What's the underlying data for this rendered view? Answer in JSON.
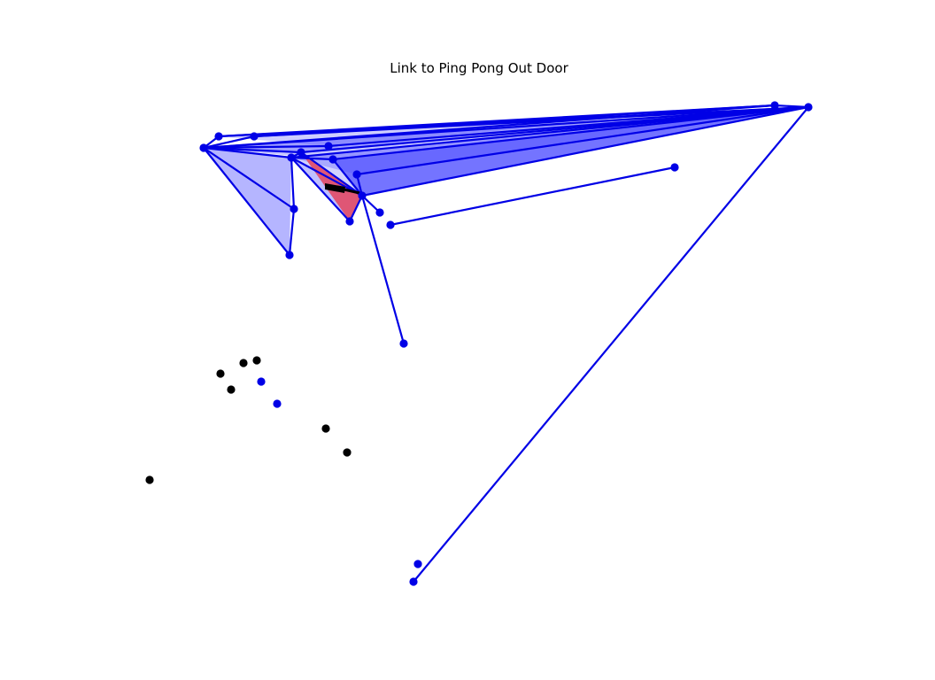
{
  "title": "Link to Ping Pong Out Door",
  "colors": {
    "background": "#ffffff",
    "title_text": "#000000",
    "edge": "#0000e6",
    "node_linked": "#0000e6",
    "node_unlinked": "#000000",
    "fill_light": "#9c9cff",
    "fill_mid": "#5c5cff",
    "fill_highlight": "#e0506e",
    "arrow": "#000000"
  }
}
